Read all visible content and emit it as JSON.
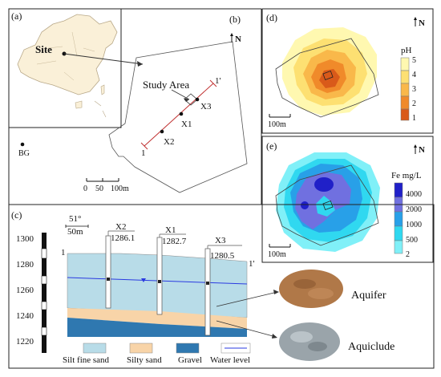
{
  "panel_a": {
    "label": "(a)",
    "site_label": "Site"
  },
  "panel_b": {
    "label": "(b)",
    "north": "N",
    "study_area_label": "Study Area",
    "wells": [
      "X1",
      "X2",
      "X3"
    ],
    "bg_label": "BG",
    "section_start": "1",
    "section_end": "1'",
    "scale_ticks": [
      "0",
      "50",
      "100m"
    ]
  },
  "panel_c": {
    "label": "(c)",
    "scale_v": "51°",
    "scale_h": "50m",
    "depth_ticks": [
      "1300",
      "1280",
      "1260",
      "1240",
      "1220"
    ],
    "section_start": "1",
    "section_end": "1'",
    "wells": [
      {
        "name": "X2",
        "elev": "1286.1"
      },
      {
        "name": "X1",
        "elev": "1282.7"
      },
      {
        "name": "X3",
        "elev": "1280.5"
      }
    ],
    "legend": [
      "Silt fine sand",
      "Silty sand",
      "Gravel",
      "Water level"
    ],
    "photos": [
      "Aquifer",
      "Aquiclude"
    ]
  },
  "panel_d": {
    "label": "(d)",
    "north": "N",
    "legend_title": "pH",
    "legend_ticks": [
      "5",
      "4",
      "3",
      "2",
      "1"
    ],
    "scale": "100m",
    "colors": [
      "#fff8b0",
      "#fde072",
      "#f9b84a",
      "#f08a2a",
      "#d95a1a"
    ]
  },
  "panel_e": {
    "label": "(e)",
    "north": "N",
    "legend_title": "Fe mg/L",
    "legend_ticks": [
      "4000",
      "2000",
      "1000",
      "500",
      "2"
    ],
    "scale": "100m",
    "colors": [
      "#2020c8",
      "#7070e0",
      "#28a0e8",
      "#30d8f0",
      "#80f0f8"
    ]
  }
}
